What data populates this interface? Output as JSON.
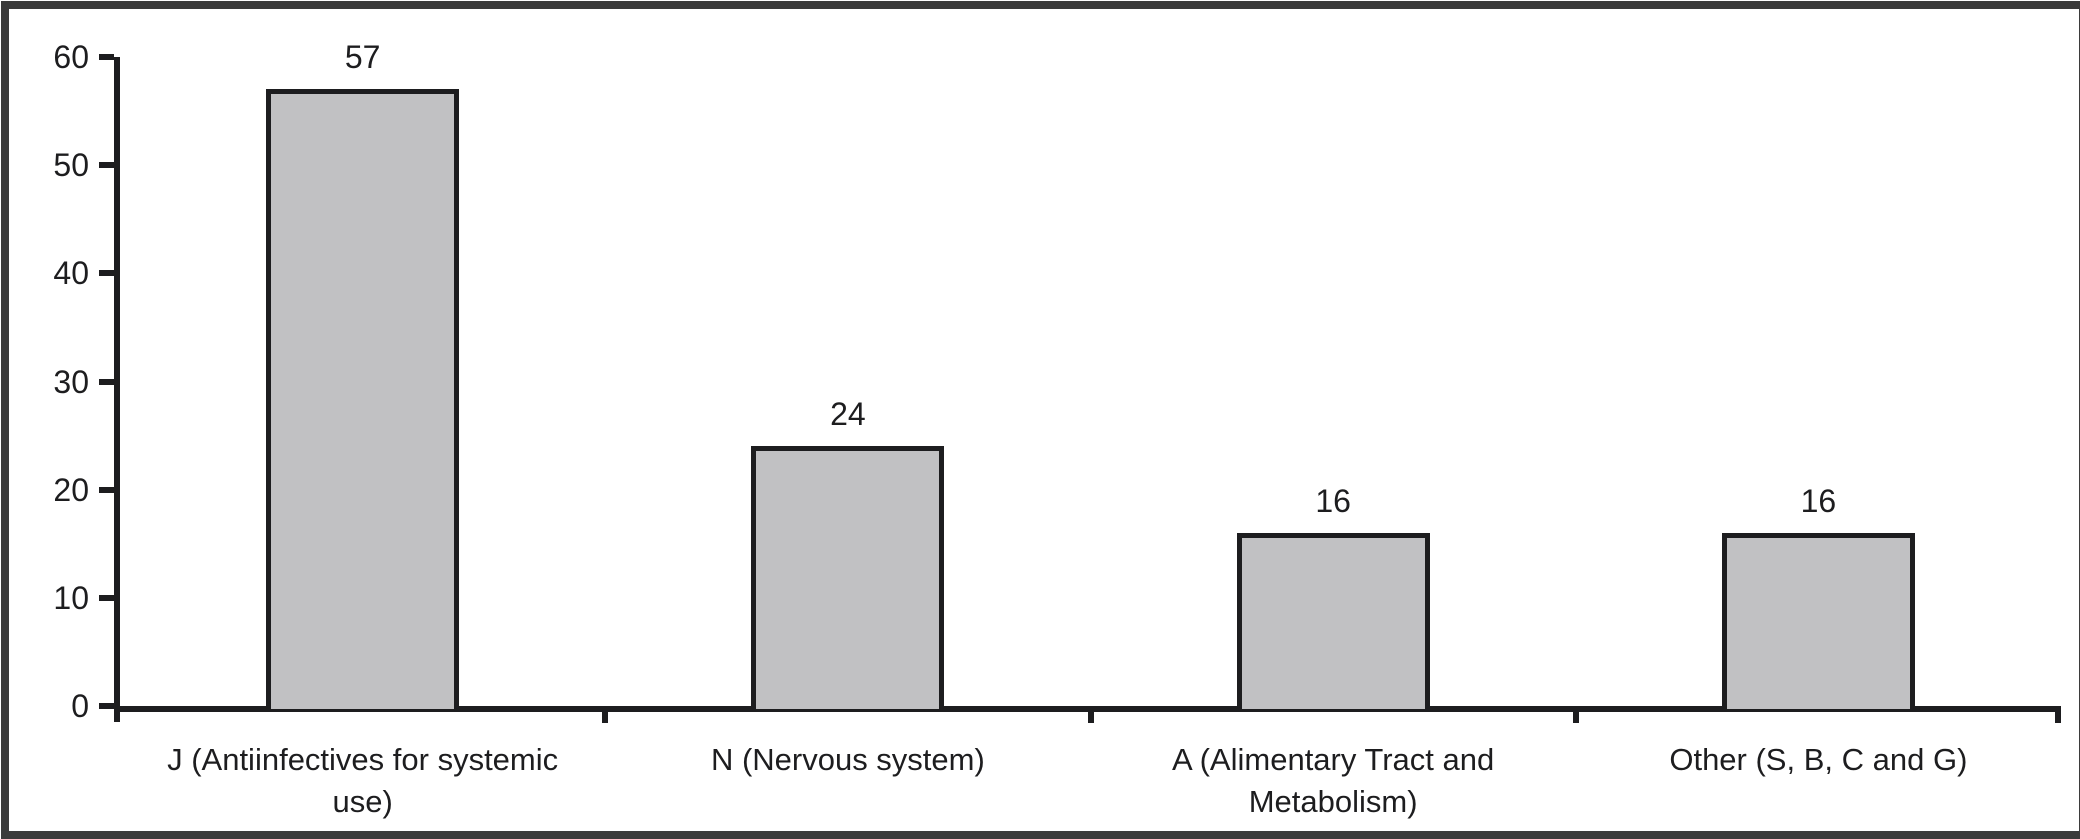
{
  "figure": {
    "background": "#ffffff",
    "frame_color": "#3b3b3b"
  },
  "chart_data": {
    "type": "bar",
    "title": "",
    "xlabel": "",
    "ylabel": "",
    "categories": [
      "J (Antiinfectives for systemic\nuse)",
      "N (Nervous system)",
      "A (Alimentary Tract and\nMetabolism)",
      "Other (S, B, C and G)"
    ],
    "values": [
      57,
      24,
      16,
      16
    ],
    "value_labels": [
      "57",
      "24",
      "16",
      "16"
    ],
    "y_ticks": [
      0,
      10,
      20,
      30,
      40,
      50,
      60
    ],
    "ylim": [
      0,
      60
    ],
    "grid": false,
    "legend": false,
    "bar_fill": "#c1c1c3",
    "bar_border": "#1d1d1f",
    "axis_color": "#1d1d1f",
    "text_color": "#1d1d1f"
  }
}
